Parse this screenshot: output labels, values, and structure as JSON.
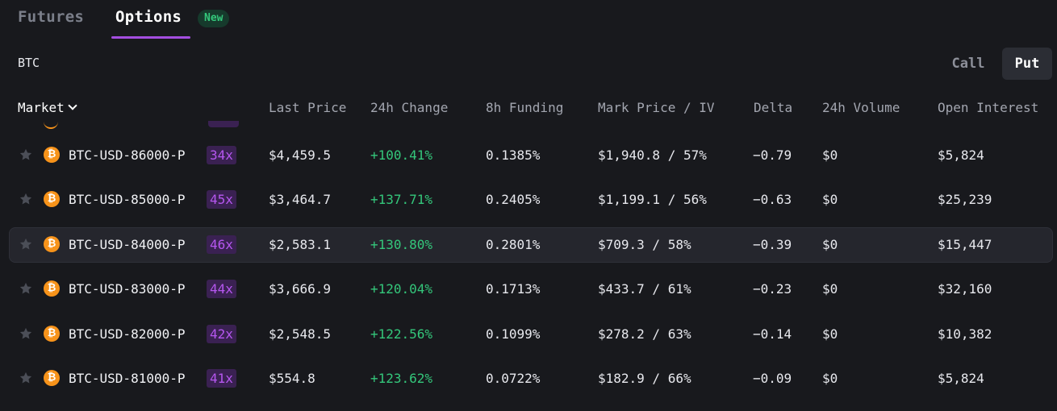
{
  "tabs": {
    "futures": "Futures",
    "options": "Options",
    "new_badge": "New"
  },
  "asset": "BTC",
  "toggle": {
    "call": "Call",
    "put": "Put",
    "selected": "Put"
  },
  "columns": {
    "market": "Market",
    "last_price": "Last Price",
    "change_24h": "24h Change",
    "funding_8h": "8h Funding",
    "mark_iv": "Mark Price / IV",
    "delta": "Delta",
    "volume_24h": "24h Volume",
    "open_interest": "Open Interest"
  },
  "colors": {
    "accent": "#a44ee0",
    "positive": "#34c77b",
    "bitcoin": "#f7931a",
    "leverage_text": "#b657f0"
  },
  "icons": {
    "star": "star-icon",
    "coin": "bitcoin-icon",
    "coin_glyph": "₿"
  },
  "rows": [
    {
      "symbol": "BTC-USD-86000-P",
      "leverage": "34x",
      "last_price": "$4,459.5",
      "change_24h": "+100.41%",
      "funding_8h": "0.1385%",
      "mark_iv": "$1,940.8 / 57%",
      "delta": "−0.79",
      "volume_24h": "$0",
      "open_interest": "$5,824"
    },
    {
      "symbol": "BTC-USD-85000-P",
      "leverage": "45x",
      "last_price": "$3,464.7",
      "change_24h": "+137.71%",
      "funding_8h": "0.2405%",
      "mark_iv": "$1,199.1 / 56%",
      "delta": "−0.63",
      "volume_24h": "$0",
      "open_interest": "$25,239"
    },
    {
      "symbol": "BTC-USD-84000-P",
      "leverage": "46x",
      "last_price": "$2,583.1",
      "change_24h": "+130.80%",
      "funding_8h": "0.2801%",
      "mark_iv": "$709.3 / 58%",
      "delta": "−0.39",
      "volume_24h": "$0",
      "open_interest": "$15,447"
    },
    {
      "symbol": "BTC-USD-83000-P",
      "leverage": "44x",
      "last_price": "$3,666.9",
      "change_24h": "+120.04%",
      "funding_8h": "0.1713%",
      "mark_iv": "$433.7 / 61%",
      "delta": "−0.23",
      "volume_24h": "$0",
      "open_interest": "$32,160"
    },
    {
      "symbol": "BTC-USD-82000-P",
      "leverage": "42x",
      "last_price": "$2,548.5",
      "change_24h": "+122.56%",
      "funding_8h": "0.1099%",
      "mark_iv": "$278.2 / 63%",
      "delta": "−0.14",
      "volume_24h": "$0",
      "open_interest": "$10,382"
    },
    {
      "symbol": "BTC-USD-81000-P",
      "leverage": "41x",
      "last_price": "$554.8",
      "change_24h": "+123.62%",
      "funding_8h": "0.0722%",
      "mark_iv": "$182.9 / 66%",
      "delta": "−0.09",
      "volume_24h": "$0",
      "open_interest": "$5,824"
    }
  ]
}
